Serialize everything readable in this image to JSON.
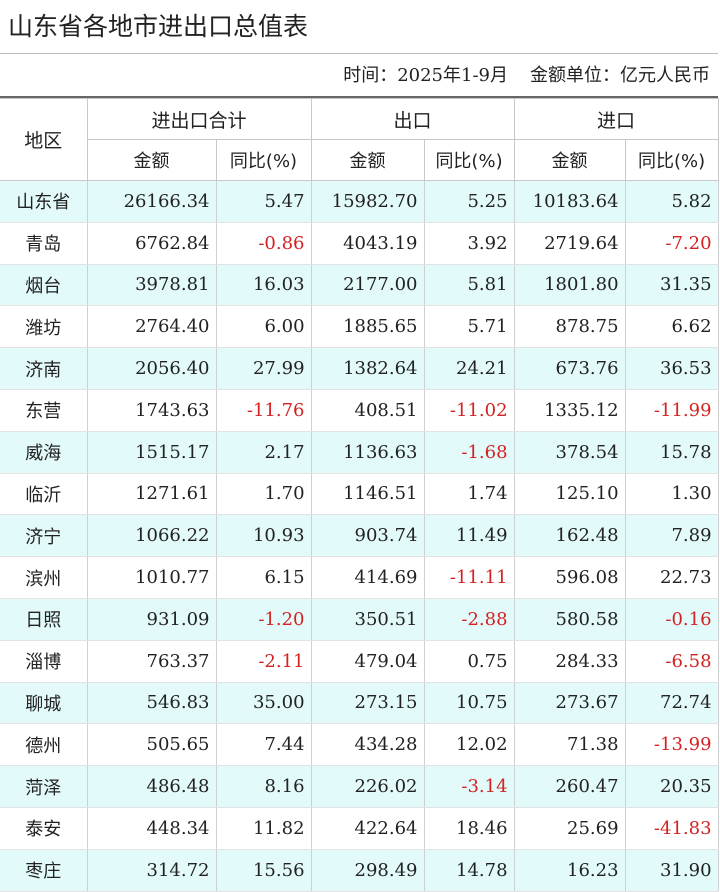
{
  "title": "山东省各地市进出口总值表",
  "meta": {
    "time": "时间：2025年1-9月",
    "unit": "金额单位：亿元人民币"
  },
  "header": {
    "region": "地区",
    "groups": [
      "进出口合计",
      "出口",
      "进口"
    ],
    "amount": "金额",
    "yoy": "同比(%)"
  },
  "colors": {
    "stripe": "#e3fafa",
    "negative": "#d42222"
  },
  "rows": [
    {
      "region": "山东省",
      "total": "26166.34",
      "total_yoy": "5.47",
      "export": "15982.70",
      "export_yoy": "5.25",
      "import": "10183.64",
      "import_yoy": "5.82"
    },
    {
      "region": "青岛",
      "total": "6762.84",
      "total_yoy": "-0.86",
      "export": "4043.19",
      "export_yoy": "3.92",
      "import": "2719.64",
      "import_yoy": "-7.20"
    },
    {
      "region": "烟台",
      "total": "3978.81",
      "total_yoy": "16.03",
      "export": "2177.00",
      "export_yoy": "5.81",
      "import": "1801.80",
      "import_yoy": "31.35"
    },
    {
      "region": "潍坊",
      "total": "2764.40",
      "total_yoy": "6.00",
      "export": "1885.65",
      "export_yoy": "5.71",
      "import": "878.75",
      "import_yoy": "6.62"
    },
    {
      "region": "济南",
      "total": "2056.40",
      "total_yoy": "27.99",
      "export": "1382.64",
      "export_yoy": "24.21",
      "import": "673.76",
      "import_yoy": "36.53"
    },
    {
      "region": "东营",
      "total": "1743.63",
      "total_yoy": "-11.76",
      "export": "408.51",
      "export_yoy": "-11.02",
      "import": "1335.12",
      "import_yoy": "-11.99"
    },
    {
      "region": "威海",
      "total": "1515.17",
      "total_yoy": "2.17",
      "export": "1136.63",
      "export_yoy": "-1.68",
      "import": "378.54",
      "import_yoy": "15.78"
    },
    {
      "region": "临沂",
      "total": "1271.61",
      "total_yoy": "1.70",
      "export": "1146.51",
      "export_yoy": "1.74",
      "import": "125.10",
      "import_yoy": "1.30"
    },
    {
      "region": "济宁",
      "total": "1066.22",
      "total_yoy": "10.93",
      "export": "903.74",
      "export_yoy": "11.49",
      "import": "162.48",
      "import_yoy": "7.89"
    },
    {
      "region": "滨州",
      "total": "1010.77",
      "total_yoy": "6.15",
      "export": "414.69",
      "export_yoy": "-11.11",
      "import": "596.08",
      "import_yoy": "22.73"
    },
    {
      "region": "日照",
      "total": "931.09",
      "total_yoy": "-1.20",
      "export": "350.51",
      "export_yoy": "-2.88",
      "import": "580.58",
      "import_yoy": "-0.16"
    },
    {
      "region": "淄博",
      "total": "763.37",
      "total_yoy": "-2.11",
      "export": "479.04",
      "export_yoy": "0.75",
      "import": "284.33",
      "import_yoy": "-6.58"
    },
    {
      "region": "聊城",
      "total": "546.83",
      "total_yoy": "35.00",
      "export": "273.15",
      "export_yoy": "10.75",
      "import": "273.67",
      "import_yoy": "72.74"
    },
    {
      "region": "德州",
      "total": "505.65",
      "total_yoy": "7.44",
      "export": "434.28",
      "export_yoy": "12.02",
      "import": "71.38",
      "import_yoy": "-13.99"
    },
    {
      "region": "菏泽",
      "total": "486.48",
      "total_yoy": "8.16",
      "export": "226.02",
      "export_yoy": "-3.14",
      "import": "260.47",
      "import_yoy": "20.35"
    },
    {
      "region": "泰安",
      "total": "448.34",
      "total_yoy": "11.82",
      "export": "422.64",
      "export_yoy": "18.46",
      "import": "25.69",
      "import_yoy": "-41.83"
    },
    {
      "region": "枣庄",
      "total": "314.72",
      "total_yoy": "15.56",
      "export": "298.49",
      "export_yoy": "14.78",
      "import": "16.23",
      "import_yoy": "31.90"
    }
  ]
}
